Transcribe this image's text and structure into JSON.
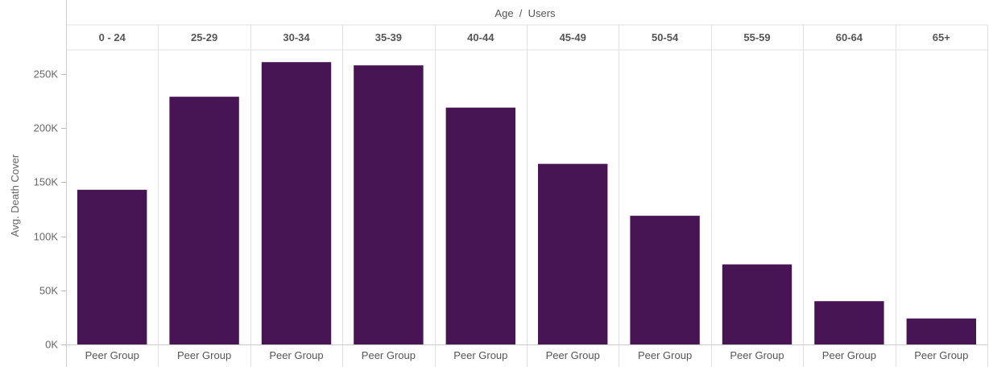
{
  "chart_data": {
    "type": "bar",
    "header_title": "Age  /  Users",
    "ylabel": "Avg. Death Cover",
    "ylim": [
      0,
      275000
    ],
    "yticks": [
      {
        "value": 0,
        "label": "0K"
      },
      {
        "value": 50000,
        "label": "50K"
      },
      {
        "value": 100000,
        "label": "100K"
      },
      {
        "value": 150000,
        "label": "150K"
      },
      {
        "value": 200000,
        "label": "200K"
      },
      {
        "value": 250000,
        "label": "250K"
      }
    ],
    "categories": [
      "0 - 24",
      "25-29",
      "30-34",
      "35-39",
      "40-44",
      "45-49",
      "50-54",
      "55-59",
      "60-64",
      "65+"
    ],
    "sub_category": "Peer Group",
    "values": [
      143000,
      229000,
      261000,
      258000,
      219000,
      167000,
      119000,
      74000,
      40000,
      24000
    ],
    "bar_color": "#471553",
    "grid": true
  }
}
